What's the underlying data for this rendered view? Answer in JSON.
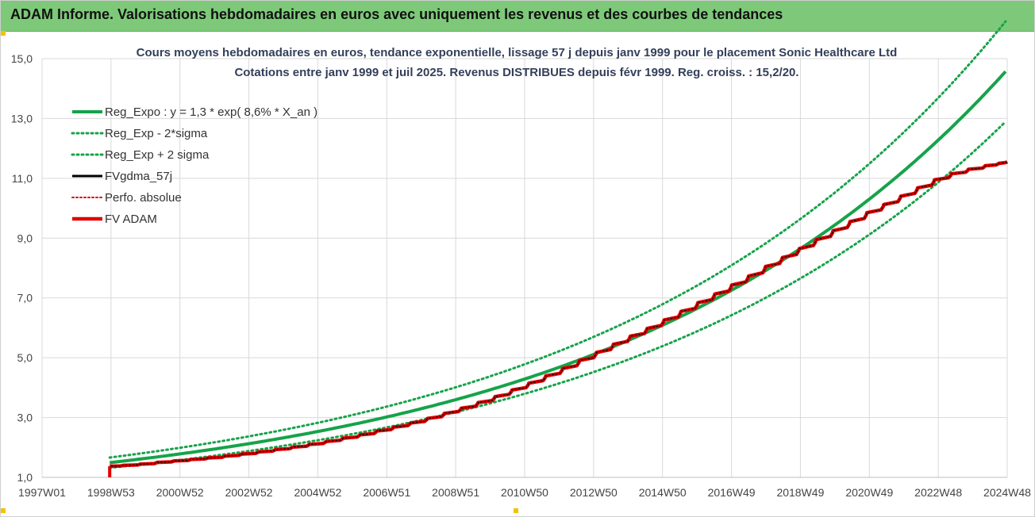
{
  "banner": {
    "title": "ADAM Informe. Valorisations hebdomadaires en euros avec uniquement les revenus et des courbes de tendances",
    "color": "#7dc979"
  },
  "chart_data": {
    "type": "line",
    "title_lines": [
      "Cours moyens hebdomadaires en euros, tendance exponentielle, lissage 57 j depuis janv 1999  pour le placement Sonic Healthcare Ltd",
      "Cotations entre janv 1999 et juil 2025. Revenus DISTRIBUES depuis févr 1999. Reg. croiss. : 15,2/20."
    ],
    "xlabel": "",
    "ylabel": "",
    "x_ticks": [
      "1997W01",
      "1998W53",
      "2000W52",
      "2002W52",
      "2004W52",
      "2006W51",
      "2008W51",
      "2010W50",
      "2012W50",
      "2014W50",
      "2016W49",
      "2018W49",
      "2020W49",
      "2022W48",
      "2024W48"
    ],
    "y_ticks": [
      "1,0",
      "3,0",
      "5,0",
      "7,0",
      "9,0",
      "11,0",
      "13,0",
      "15,0"
    ],
    "ylim": [
      1,
      15
    ],
    "xlim": [
      1997.0,
      2025.55
    ],
    "grid": "vertical and horizontal",
    "legend_position": "top-left",
    "regression": {
      "a": 1.3,
      "growth_rate": 0.086,
      "sigma_offset": 0.115,
      "x_start": 1999.0,
      "x_end": 2025.55
    },
    "series": [
      {
        "name": "Reg_Expo : y = 1,3 * exp( 8,6% *  X_an )",
        "color": "#16a34a",
        "style": "solid-thick"
      },
      {
        "name": "Reg_Exp - 2*sigma",
        "color": "#16a34a",
        "style": "dotted"
      },
      {
        "name": "Reg_Exp + 2 sigma",
        "color": "#16a34a",
        "style": "dotted"
      },
      {
        "name": "FVgdma_57j",
        "color": "#000000",
        "style": "solid"
      },
      {
        "name": "Perfo. absolue",
        "color": "#e00000",
        "style": "dotted"
      },
      {
        "name": "FV ADAM",
        "color": "#e00000",
        "style": "solid-thick"
      }
    ],
    "fv_adam": {
      "x": [
        1999.0,
        1999.4,
        1999.9,
        2000.4,
        2000.9,
        2001.4,
        2001.9,
        2002.4,
        2002.9,
        2003.4,
        2003.9,
        2004.4,
        2004.9,
        2005.4,
        2005.9,
        2006.4,
        2006.9,
        2007.4,
        2007.9,
        2008.4,
        2008.9,
        2009.4,
        2009.9,
        2010.4,
        2010.9,
        2011.4,
        2011.9,
        2012.4,
        2012.9,
        2013.4,
        2013.9,
        2014.4,
        2014.9,
        2015.4,
        2015.9,
        2016.4,
        2016.9,
        2017.4,
        2017.9,
        2018.4,
        2018.9,
        2019.4,
        2019.9,
        2020.4,
        2020.9,
        2021.4,
        2021.9,
        2022.4,
        2022.9,
        2023.4,
        2023.9,
        2024.4,
        2024.9,
        2025.3,
        2025.55
      ],
      "values": [
        1.37,
        1.4,
        1.44,
        1.5,
        1.55,
        1.6,
        1.65,
        1.71,
        1.78,
        1.85,
        1.93,
        2.01,
        2.1,
        2.2,
        2.31,
        2.42,
        2.55,
        2.68,
        2.82,
        2.97,
        3.14,
        3.31,
        3.5,
        3.7,
        3.92,
        4.15,
        4.39,
        4.64,
        4.91,
        5.18,
        5.45,
        5.72,
        5.98,
        6.26,
        6.55,
        6.84,
        7.13,
        7.43,
        7.73,
        8.05,
        8.35,
        8.65,
        8.95,
        9.25,
        9.55,
        9.85,
        10.12,
        10.4,
        10.68,
        10.95,
        11.15,
        11.3,
        11.42,
        11.5,
        11.55
      ]
    }
  }
}
